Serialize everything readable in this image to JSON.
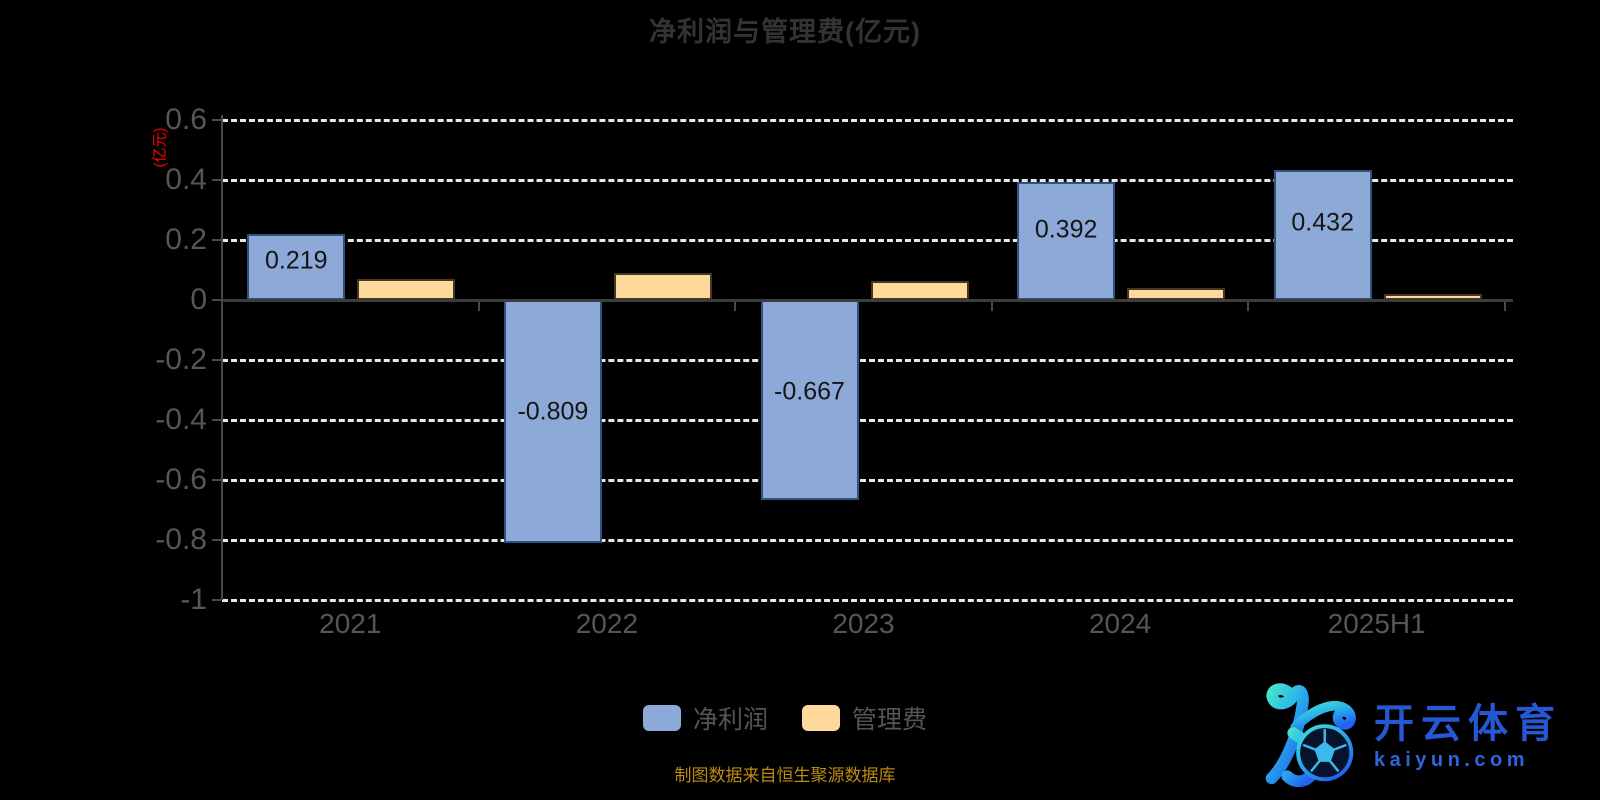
{
  "title": "净利润与管理费(亿元)",
  "source_note": "制图数据来自恒生聚源数据库",
  "watermark": {
    "brand": "开云体育",
    "domain": "kaiyun.com",
    "icon": "kaiyun-k-soccer-logo"
  },
  "colors": {
    "background": "#000000",
    "title_text": "#333333",
    "axis_text": "#565656",
    "axis_line": "#484848",
    "gridline": "#e8e8e8",
    "zero_line": "#3c3c3c",
    "bar_label_text": "#161616",
    "source_text": "#bb8a10",
    "watermark_blue": "#2558d2",
    "y_axis_name_red": "#ff0000"
  },
  "chart_data": {
    "type": "bar",
    "title": "净利润与管理费(亿元)",
    "categories": [
      "2021",
      "2022",
      "2023",
      "2024",
      "2025H1"
    ],
    "series": [
      {
        "name": "净利润",
        "color": "#8ca9d8",
        "border_color": "#31517e",
        "values": [
          0.219,
          -0.809,
          -0.667,
          0.392,
          0.432
        ],
        "labels": [
          "0.219",
          "-0.809",
          "-0.667",
          "0.392",
          "0.432"
        ]
      },
      {
        "name": "管理费",
        "color": "#ffd99b",
        "border_color": "#453823",
        "values": [
          0.07,
          0.09,
          0.065,
          0.04,
          0.02
        ],
        "labels": []
      }
    ],
    "y_axis": {
      "name": "(亿元)",
      "min": -1,
      "max": 0.6,
      "interval": 0.2,
      "tick_labels": [
        "0.6",
        "0.4",
        "0.2",
        "0",
        "-0.2",
        "-0.4",
        "-0.6",
        "-0.8",
        "-1"
      ]
    },
    "x_axis": {
      "tick_labels": [
        "2021",
        "2022",
        "2023",
        "2024",
        "2025H1"
      ]
    },
    "legend": {
      "position": "bottom",
      "items": [
        "净利润",
        "管理费"
      ]
    },
    "grid": {
      "dashed": true,
      "legend_bottom": true
    }
  }
}
